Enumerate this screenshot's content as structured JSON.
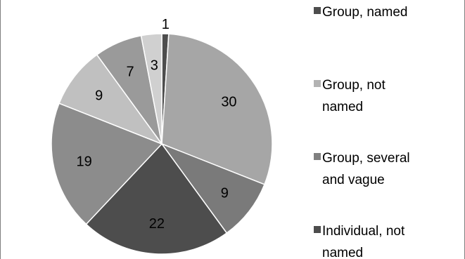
{
  "chart_data": {
    "type": "pie",
    "title": "",
    "start_angle_deg": 0,
    "direction": "clockwise",
    "legend_placement": "right",
    "slices": [
      {
        "label": "",
        "value": 1,
        "color": "#4d4d4d"
      },
      {
        "label": "",
        "value": 30,
        "color": "#a6a6a6"
      },
      {
        "label": "",
        "value": 9,
        "color": "#7a7a7a"
      },
      {
        "label": "",
        "value": 22,
        "color": "#4d4d4d"
      },
      {
        "label": "",
        "value": 19,
        "color": "#8c8c8c"
      },
      {
        "label": "",
        "value": 9,
        "color": "#c0c0c0"
      },
      {
        "label": "",
        "value": 7,
        "color": "#9a9a9a"
      },
      {
        "label": "",
        "value": 3,
        "color": "#d0d0d0"
      }
    ],
    "legend": [
      {
        "lines": [
          "Group, named"
        ],
        "color": "#4d4d4d"
      },
      {
        "lines": [
          "Group, not",
          "named"
        ],
        "color": "#b3b3b3"
      },
      {
        "lines": [
          "Group, several",
          "and vague"
        ],
        "color": "#808080"
      },
      {
        "lines": [
          "Individual, not",
          "named"
        ],
        "color": "#4d4d4d"
      }
    ]
  }
}
